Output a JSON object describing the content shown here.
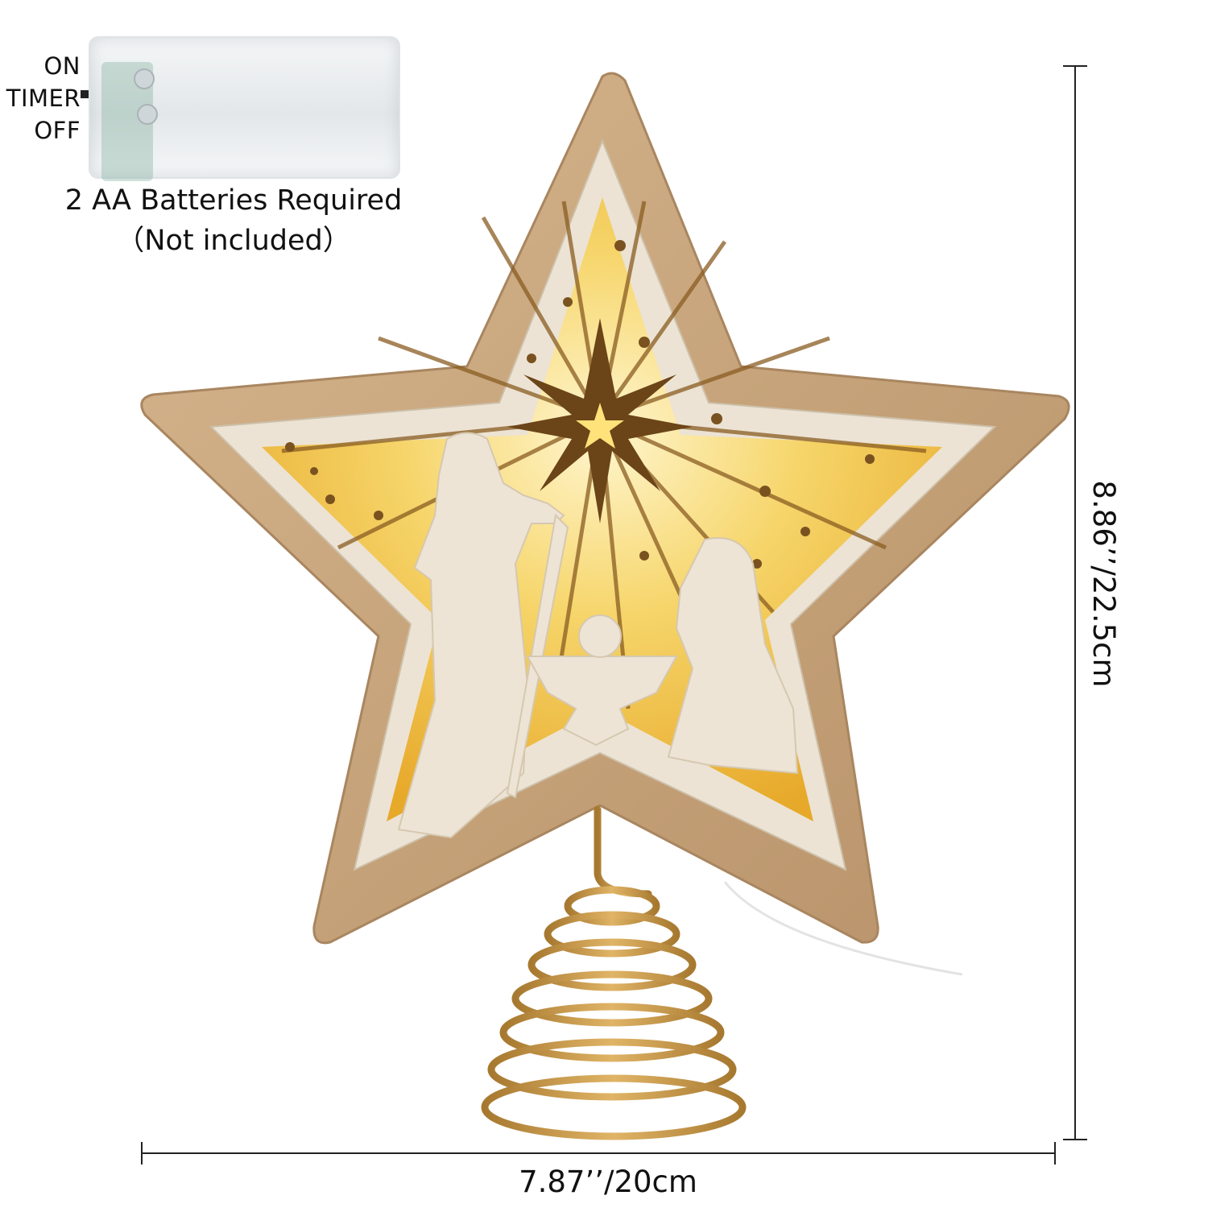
{
  "switch_labels": [
    "ON",
    "TIMER",
    "OFF"
  ],
  "battery": {
    "caption_line1": "2 AA Batteries Required",
    "caption_line2": "（Not included）"
  },
  "dimensions": {
    "height": "8.86’’/22.5cm",
    "width": "7.87’’/20cm"
  },
  "colors": {
    "wood_outer": "#c9a67e",
    "wood_inner": "#ede4d6",
    "glow": "#f2c64a",
    "wire": "#c99a4a"
  }
}
